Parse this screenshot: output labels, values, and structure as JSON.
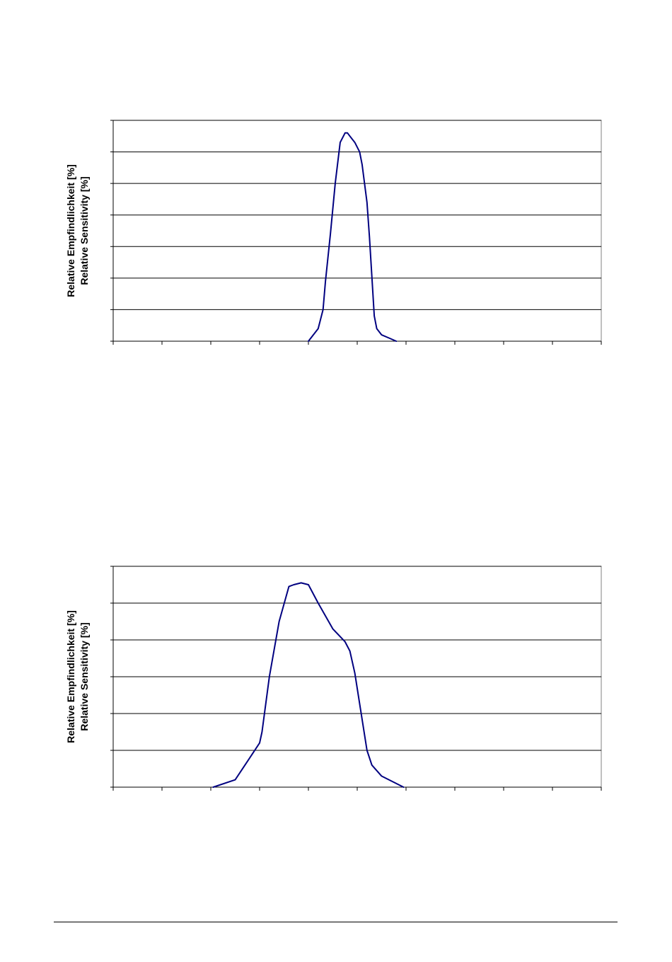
{
  "colors": {
    "line": "#000080",
    "axis": "#000000",
    "grid": "#000000",
    "background": "#ffffff"
  },
  "chart_data": [
    {
      "type": "line",
      "ylabel_line1": "Relative Empfindlichkeit [%]",
      "ylabel_line2": "Relative Sensitivity [%]",
      "xlim": [
        0,
        10
      ],
      "ylim": [
        0,
        7
      ],
      "x_ticks": 10,
      "y_gridlines": 7,
      "grid": true,
      "series": [
        {
          "x": [
            4.0,
            4.2,
            4.3,
            4.35,
            4.45,
            4.55,
            4.65,
            4.75,
            4.8,
            4.85,
            4.95,
            5.05,
            5.1,
            5.2,
            5.25,
            5.35,
            5.4,
            5.5,
            5.65,
            5.8
          ],
          "y": [
            0.0,
            0.4,
            1.0,
            1.9,
            3.4,
            5.0,
            6.3,
            6.6,
            6.6,
            6.5,
            6.3,
            6.0,
            5.6,
            4.4,
            3.3,
            0.8,
            0.4,
            0.2,
            0.1,
            0.0
          ]
        }
      ]
    },
    {
      "type": "line",
      "ylabel_line1": "Relative Empfindlichkeit [%]",
      "ylabel_line2": "Relative Sensitivity [%]",
      "xlim": [
        0,
        10
      ],
      "ylim": [
        0,
        6
      ],
      "x_ticks": 10,
      "y_gridlines": 6,
      "grid": true,
      "series": [
        {
          "x": [
            2.05,
            2.5,
            2.8,
            3.0,
            3.05,
            3.2,
            3.4,
            3.6,
            3.7,
            3.85,
            4.0,
            4.2,
            4.5,
            4.75,
            4.85,
            4.95,
            5.2,
            5.3,
            5.5,
            5.95
          ],
          "y": [
            0.0,
            0.2,
            0.8,
            1.2,
            1.5,
            3.0,
            4.5,
            5.45,
            5.5,
            5.55,
            5.5,
            5.0,
            4.3,
            3.95,
            3.7,
            3.1,
            1.0,
            0.6,
            0.3,
            0.0
          ]
        }
      ]
    }
  ]
}
